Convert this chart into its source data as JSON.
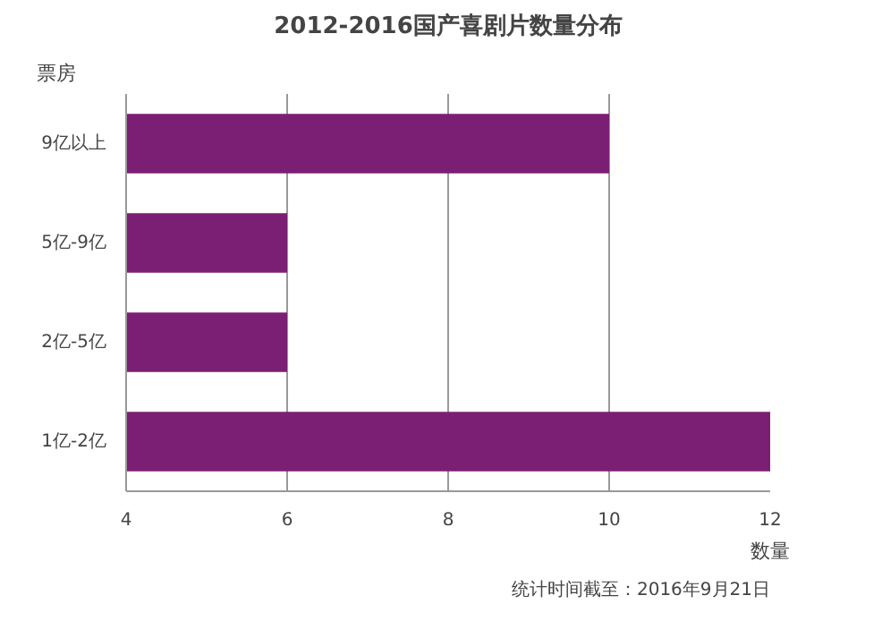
{
  "chart_data": {
    "type": "bar",
    "orientation": "horizontal",
    "title": "2012-2016国产喜剧片数量分布",
    "categories": [
      "9亿以上",
      "5亿-9亿",
      "2亿-5亿",
      "1亿-2亿"
    ],
    "values": [
      10,
      6,
      6,
      12
    ],
    "color": "#7b1f74",
    "xlim": [
      4,
      12
    ],
    "xticks": [
      4,
      6,
      8,
      10,
      12
    ],
    "xlabel": "数量",
    "ylabel": "票房",
    "grid": "x",
    "annotations": [
      "统计时间截至：2016年9月21日"
    ]
  }
}
